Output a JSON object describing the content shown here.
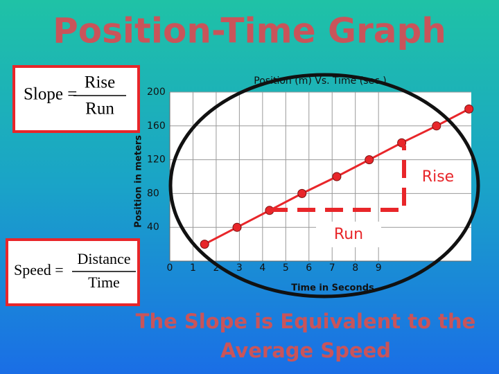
{
  "slide": {
    "title": "Position-Time Graph",
    "slope_formula": {
      "lhs": "Slope =",
      "numerator": "Rise",
      "denominator": "Run"
    },
    "speed_formula": {
      "lhs": "Speed =",
      "numerator": "Distance",
      "denominator": "Time"
    },
    "rise_label": "Rise",
    "run_label": "Run",
    "caption": [
      "The Slope is Equivalent to the",
      "Average Speed"
    ]
  },
  "chart_data": {
    "type": "line",
    "title": "Position (m) Vs. Time (sec.)",
    "xlabel": "Time in Seconds",
    "ylabel": "Position in meters",
    "x": [
      1.5,
      2.9,
      4.3,
      5.7,
      7.2,
      8.6,
      10.0,
      11.5,
      12.9
    ],
    "series": [
      {
        "color": "#e8262a",
        "values": [
          20,
          40,
          60,
          80,
          100,
          120,
          140,
          160,
          180
        ]
      }
    ],
    "xlim": [
      0,
      13
    ],
    "xticks": [
      0,
      1,
      2,
      3,
      4,
      5,
      6,
      7,
      8,
      9
    ],
    "ylim": [
      0,
      200
    ],
    "yticks": [
      40,
      80,
      120,
      160,
      200
    ],
    "grid": true
  }
}
